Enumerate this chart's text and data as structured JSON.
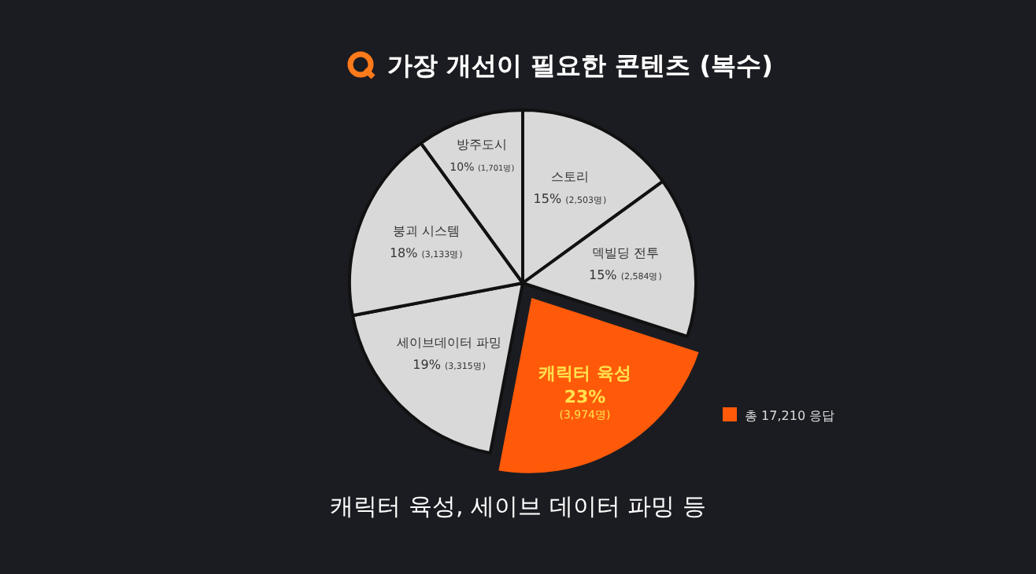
{
  "chart_data": {
    "type": "pie",
    "title": "가장 개선이 필요한 콘텐츠 (복수)",
    "categories": [
      "스토리",
      "덱빌딩 전투",
      "캐릭터 육성",
      "세이브데이터 파밍",
      "붕괴 시스템",
      "방주도시"
    ],
    "values": [
      15,
      15,
      23,
      19,
      18,
      10
    ],
    "value_labels": [
      "15% (2,503명)",
      "15% (2,584명)",
      "23% (3,974명)",
      "19% (3,315명)",
      "18% (3,133명)",
      "10% (1,701명)"
    ],
    "colors": [
      "#d9d9d9",
      "#d9d9d9",
      "#ff5a0a",
      "#d9d9d9",
      "#d9d9d9",
      "#d9d9d9"
    ],
    "annotations": [
      "총 17,210 응답",
      "캐릭터 육성, 세이브 데이터 파밍 등"
    ]
  }
}
